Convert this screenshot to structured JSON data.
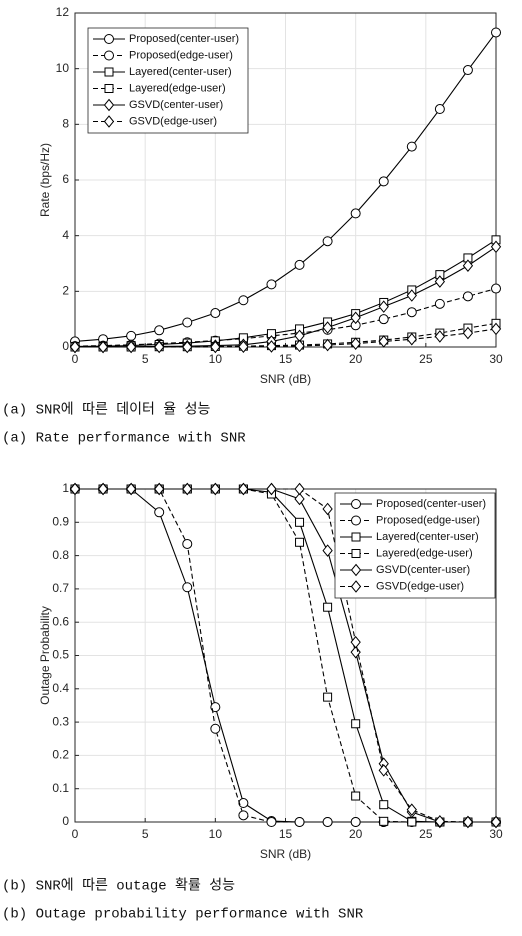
{
  "chart_data": [
    {
      "type": "line",
      "xlabel": "SNR (dB)",
      "ylabel": "Rate (bps/Hz)",
      "captions": [
        "(a) SNR에 따른 데이터 율 성능",
        "(a) Rate performance with SNR"
      ],
      "x": [
        0,
        2,
        4,
        6,
        8,
        10,
        12,
        14,
        16,
        18,
        20,
        22,
        24,
        26,
        28,
        30
      ],
      "xlim": [
        0,
        30
      ],
      "xticks": [
        0,
        5,
        10,
        15,
        20,
        25,
        30
      ],
      "ylim": [
        0,
        12
      ],
      "yticks": [
        0,
        2,
        4,
        6,
        8,
        10,
        12
      ],
      "grid": true,
      "legend": "upper left",
      "series": [
        {
          "name": "Proposed(center-user)",
          "color": "#000000",
          "marker": "circle",
          "dashed": false,
          "values": [
            0.2,
            0.28,
            0.4,
            0.6,
            0.88,
            1.22,
            1.68,
            2.25,
            2.95,
            3.8,
            4.8,
            5.95,
            7.2,
            8.55,
            9.95,
            11.3
          ]
        },
        {
          "name": "Proposed(edge-user)",
          "color": "#000000",
          "marker": "circle",
          "dashed": true,
          "values": [
            0.03,
            0.05,
            0.08,
            0.12,
            0.17,
            0.23,
            0.3,
            0.4,
            0.5,
            0.62,
            0.78,
            1.0,
            1.25,
            1.55,
            1.82,
            2.1
          ]
        },
        {
          "name": "Layered(center-user)",
          "color": "#000000",
          "marker": "square",
          "dashed": false,
          "values": [
            0.02,
            0.03,
            0.05,
            0.09,
            0.14,
            0.22,
            0.33,
            0.48,
            0.65,
            0.9,
            1.2,
            1.6,
            2.05,
            2.6,
            3.2,
            3.85
          ]
        },
        {
          "name": "Layered(edge-user)",
          "color": "#000000",
          "marker": "square",
          "dashed": true,
          "values": [
            0,
            0,
            0,
            0.01,
            0.01,
            0.02,
            0.03,
            0.05,
            0.07,
            0.11,
            0.17,
            0.25,
            0.36,
            0.5,
            0.68,
            0.85
          ]
        },
        {
          "name": "GSVD(center-user)",
          "color": "#000000",
          "marker": "diamond",
          "dashed": false,
          "values": [
            0,
            0,
            0.01,
            0.02,
            0.03,
            0.05,
            0.08,
            0.2,
            0.4,
            0.7,
            1.05,
            1.45,
            1.85,
            2.35,
            2.92,
            3.6
          ]
        },
        {
          "name": "GSVD(edge-user)",
          "color": "#000000",
          "marker": "diamond",
          "dashed": true,
          "values": [
            0,
            0,
            0,
            0,
            0,
            0,
            0.01,
            0.02,
            0.04,
            0.07,
            0.12,
            0.2,
            0.28,
            0.38,
            0.5,
            0.65
          ]
        }
      ]
    },
    {
      "type": "line",
      "xlabel": "SNR (dB)",
      "ylabel": "Outage Probability",
      "captions": [
        "(b) SNR에 따른 outage 확률 성능",
        "(b) Outage probability performance with SNR"
      ],
      "x": [
        0,
        2,
        4,
        6,
        8,
        10,
        12,
        14,
        16,
        18,
        20,
        22,
        24,
        26,
        28,
        30
      ],
      "xlim": [
        0,
        30
      ],
      "xticks": [
        0,
        5,
        10,
        15,
        20,
        25,
        30
      ],
      "ylim": [
        0,
        1
      ],
      "yticks": [
        0,
        0.1,
        0.2,
        0.3,
        0.4,
        0.5,
        0.6,
        0.7,
        0.8,
        0.9,
        1
      ],
      "grid": true,
      "legend": "upper right",
      "series": [
        {
          "name": "Proposed(center-user)",
          "color": "#000000",
          "marker": "circle",
          "dashed": false,
          "values": [
            1,
            1,
            1,
            0.93,
            0.705,
            0.345,
            0.057,
            0.003,
            0,
            0,
            0,
            0,
            0,
            0,
            0,
            0
          ]
        },
        {
          "name": "Proposed(edge-user)",
          "color": "#000000",
          "marker": "circle",
          "dashed": true,
          "values": [
            1,
            1,
            1,
            1,
            0.835,
            0.28,
            0.02,
            0,
            0,
            0,
            0,
            0,
            0,
            0,
            0,
            0
          ]
        },
        {
          "name": "Layered(center-user)",
          "color": "#000000",
          "marker": "square",
          "dashed": false,
          "values": [
            1,
            1,
            1,
            1,
            1,
            1,
            1,
            0.99,
            0.9,
            0.645,
            0.295,
            0.052,
            0.002,
            0,
            0,
            0
          ]
        },
        {
          "name": "Layered(edge-user)",
          "color": "#000000",
          "marker": "square",
          "dashed": true,
          "values": [
            1,
            1,
            1,
            1,
            1,
            1,
            1,
            0.985,
            0.84,
            0.375,
            0.078,
            0.002,
            0,
            0,
            0,
            0
          ]
        },
        {
          "name": "GSVD(center-user)",
          "color": "#000000",
          "marker": "diamond",
          "dashed": false,
          "values": [
            1,
            1,
            1,
            1,
            1,
            1,
            1,
            1,
            0.97,
            0.815,
            0.51,
            0.175,
            0.03,
            0,
            0,
            0
          ]
        },
        {
          "name": "GSVD(edge-user)",
          "color": "#000000",
          "marker": "diamond",
          "dashed": true,
          "values": [
            1,
            1,
            1,
            1,
            1,
            1,
            1,
            1,
            1,
            0.94,
            0.54,
            0.155,
            0.037,
            0.002,
            0,
            0
          ]
        }
      ]
    }
  ]
}
